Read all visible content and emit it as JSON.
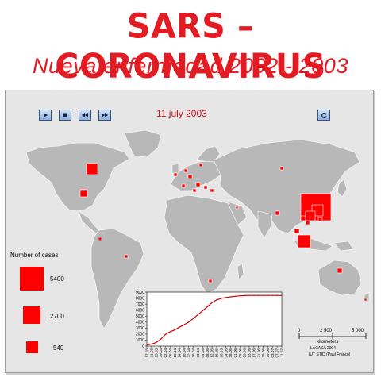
{
  "header": {
    "title": "SARS – CORONAVIRUS",
    "subtitle": "Nueva  enfermedad  2002 - 2003"
  },
  "player": {
    "controls": [
      "play-icon",
      "stop-icon",
      "rewind-icon",
      "fast-forward-icon"
    ],
    "refresh_control": "refresh-icon",
    "current_date": "11 july 2003"
  },
  "legend": {
    "title": "Number of cases",
    "entries": [
      {
        "label": "5400",
        "cases": 5400
      },
      {
        "label": "2700",
        "cases": 2700
      },
      {
        "label": "540",
        "cases": 540
      }
    ]
  },
  "scale_bar": {
    "ticks": [
      "0",
      "2 500",
      "5 000"
    ],
    "unit": "kilometers"
  },
  "credits": {
    "line1": "LACASA  2004",
    "line2": "IUT STID (Paul Franco)"
  },
  "colors": {
    "accent": "#e31b23",
    "case_marker": "#ff0000",
    "land": "#b8b8b8",
    "panel": "#e6e6e6"
  },
  "chart_data": {
    "type": "line",
    "title": "",
    "xlabel": "",
    "ylabel": "",
    "ylim": [
      0,
      9000
    ],
    "yticks": [
      "0",
      "1000",
      "2000",
      "3000",
      "4000",
      "5000",
      "6000",
      "7000",
      "8000",
      "9000"
    ],
    "x": [
      "17.03",
      "21.03",
      "25.03",
      "29.03",
      "02.04",
      "06.04",
      "10.04",
      "14.04",
      "18.04",
      "22.04",
      "26.04",
      "30.04",
      "04.05",
      "08.05",
      "12.05",
      "16.05",
      "20.05",
      "24.05",
      "28.05",
      "01.06",
      "05.06",
      "09.06",
      "13.06",
      "17.06",
      "21.06",
      "25.06",
      "29.06",
      "03.07",
      "07.07",
      "11.07"
    ],
    "series": [
      {
        "values": [
          170,
          350,
          600,
          1150,
          1950,
          2400,
          2700,
          3150,
          3550,
          4000,
          4600,
          5250,
          5900,
          6550,
          7250,
          7700,
          7950,
          8100,
          8200,
          8300,
          8380,
          8420,
          8440,
          8450,
          8450,
          8450,
          8450,
          8450,
          8440,
          8430
        ]
      }
    ]
  }
}
